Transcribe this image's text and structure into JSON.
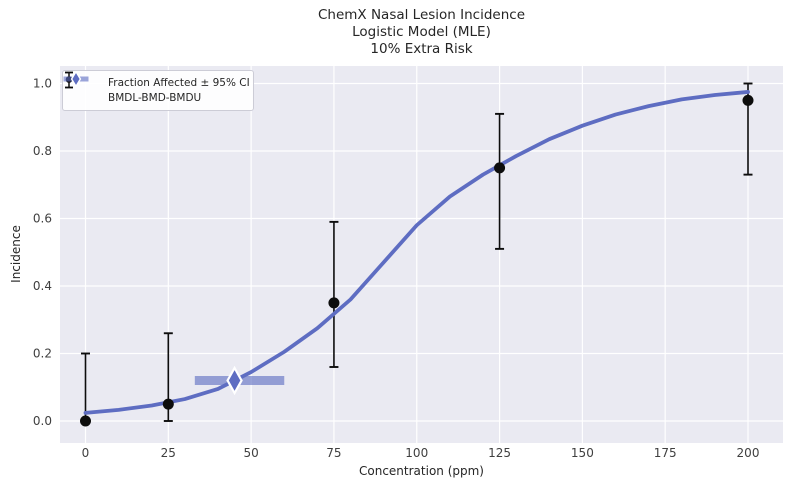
{
  "figure": {
    "title_lines": [
      "ChemX Nasal Lesion Incidence",
      "Logistic Model (MLE)",
      "10% Extra Risk"
    ]
  },
  "legend": {
    "items": [
      {
        "label": "Fraction Affected ± 95% CI",
        "icon": "errorbar-point-icon"
      },
      {
        "label": "BMDL-BMD-BMDU",
        "icon": "bmd-interval-icon"
      }
    ]
  },
  "chart_data": {
    "type": "line",
    "title": "ChemX Nasal Lesion Incidence\nLogistic Model (MLE)\n10% Extra Risk",
    "xlabel": "Concentration (ppm)",
    "ylabel": "Incidence",
    "xlim": [
      -7.8,
      210.6
    ],
    "ylim": [
      -0.065,
      1.05
    ],
    "x_ticks": [
      "0",
      "25",
      "50",
      "75",
      "100",
      "125",
      "150",
      "175",
      "200"
    ],
    "y_ticks": [
      "0.0",
      "0.2",
      "0.4",
      "0.6",
      "0.8",
      "1.0"
    ],
    "grid": true,
    "legend_position": "upper left",
    "observed_points": [
      {
        "concentration": 0,
        "fraction_affected": 0.0,
        "ci_lower": 0.0,
        "ci_upper": 0.2
      },
      {
        "concentration": 25,
        "fraction_affected": 0.05,
        "ci_lower": 0.0,
        "ci_upper": 0.26
      },
      {
        "concentration": 75,
        "fraction_affected": 0.35,
        "ci_lower": 0.16,
        "ci_upper": 0.59
      },
      {
        "concentration": 125,
        "fraction_affected": 0.75,
        "ci_lower": 0.51,
        "ci_upper": 0.91
      },
      {
        "concentration": 200,
        "fraction_affected": 0.95,
        "ci_lower": 0.73,
        "ci_upper": 1.0
      }
    ],
    "model_curve": {
      "x": [
        0,
        10,
        20,
        30,
        40,
        50,
        60,
        70,
        80,
        90,
        100,
        110,
        120,
        130,
        140,
        150,
        160,
        170,
        180,
        190,
        200
      ],
      "y": [
        0.024,
        0.033,
        0.046,
        0.065,
        0.095,
        0.145,
        0.205,
        0.275,
        0.36,
        0.47,
        0.58,
        0.665,
        0.73,
        0.785,
        0.835,
        0.875,
        0.908,
        0.933,
        0.953,
        0.966,
        0.975
      ]
    },
    "bmd": {
      "bmdl": 33,
      "bmd": 45,
      "bmdu": 60,
      "bmd_response": 0.12
    },
    "colors": {
      "curve": "#5e6dc2",
      "bmd_interval": "#8f99d2",
      "points": "#0d0d0d",
      "axes_background": "#eaeaf2",
      "grid": "#ffffff",
      "text": "#262626"
    }
  }
}
